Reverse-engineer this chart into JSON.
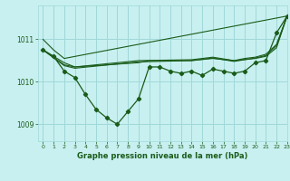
{
  "xlabel": "Graphe pression niveau de la mer (hPa)",
  "background_color": "#c8f0f0",
  "grid_color": "#a0d8d8",
  "line_color": "#1a5c1a",
  "ylim": [
    1008.6,
    1011.8
  ],
  "xlim": [
    -0.5,
    23
  ],
  "yticks": [
    1009,
    1010,
    1011
  ],
  "xticks": [
    0,
    1,
    2,
    3,
    4,
    5,
    6,
    7,
    8,
    9,
    10,
    11,
    12,
    13,
    14,
    15,
    16,
    17,
    18,
    19,
    20,
    21,
    22,
    23
  ],
  "series": [
    {
      "x": [
        0,
        1,
        2,
        3,
        4,
        5,
        6,
        7,
        8,
        9,
        10,
        11,
        12,
        13,
        14,
        15,
        16,
        17,
        18,
        19,
        20,
        21,
        22,
        23
      ],
      "y": [
        1010.75,
        1010.6,
        1010.25,
        1010.1,
        1009.7,
        1009.35,
        1009.15,
        1009.0,
        1009.3,
        1009.6,
        1010.35,
        1010.35,
        1010.25,
        1010.2,
        1010.25,
        1010.15,
        1010.3,
        1010.25,
        1010.2,
        1010.25,
        1010.45,
        1010.5,
        1011.15,
        1011.55
      ],
      "marker": true
    },
    {
      "x": [
        0,
        1,
        2,
        23
      ],
      "y": [
        1011.0,
        1010.75,
        1010.55,
        1011.55
      ],
      "marker": false
    },
    {
      "x": [
        0,
        2,
        3,
        9,
        10,
        14,
        16,
        18,
        20,
        21,
        22,
        23
      ],
      "y": [
        1010.75,
        1010.45,
        1010.35,
        1010.45,
        1010.5,
        1010.5,
        1010.55,
        1010.5,
        1010.55,
        1010.6,
        1010.8,
        1011.55
      ],
      "marker": false
    },
    {
      "x": [
        0,
        2,
        3,
        9,
        14,
        16,
        18,
        19,
        20,
        21,
        22,
        23
      ],
      "y": [
        1010.75,
        1010.4,
        1010.35,
        1010.5,
        1010.52,
        1010.58,
        1010.5,
        1010.55,
        1010.58,
        1010.65,
        1010.88,
        1011.55
      ],
      "marker": false
    },
    {
      "x": [
        0,
        2,
        3,
        9,
        14,
        16,
        18,
        19,
        20,
        21,
        22,
        23
      ],
      "y": [
        1010.75,
        1010.38,
        1010.32,
        1010.47,
        1010.5,
        1010.56,
        1010.48,
        1010.52,
        1010.56,
        1010.62,
        1010.85,
        1011.55
      ],
      "marker": false
    }
  ]
}
